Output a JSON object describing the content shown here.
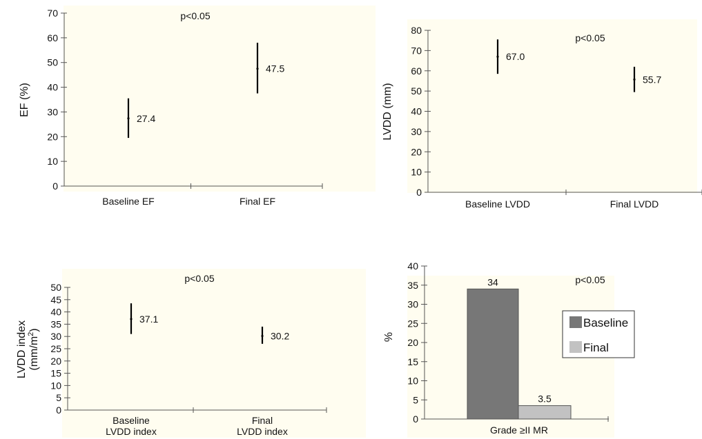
{
  "chart_data": [
    {
      "type": "errorbar",
      "categories": [
        "Baseline EF",
        "Final EF"
      ],
      "ylabel": "EF (%)",
      "ylim": [
        0,
        70
      ],
      "yticks": [
        0,
        10,
        20,
        30,
        40,
        50,
        60,
        70
      ],
      "annotation": "p<0.05",
      "points": [
        {
          "mean": 27.4,
          "low": 19.5,
          "high": 35.5,
          "label": "27.4"
        },
        {
          "mean": 47.5,
          "low": 37.5,
          "high": 58,
          "label": "47.5"
        }
      ]
    },
    {
      "type": "errorbar",
      "categories": [
        "Baseline LVDD",
        "Final LVDD"
      ],
      "ylabel": "LVDD (mm)",
      "ylim": [
        0,
        80
      ],
      "yticks": [
        0,
        10,
        20,
        30,
        40,
        50,
        60,
        70,
        80
      ],
      "annotation": "p<0.05",
      "points": [
        {
          "mean": 67.0,
          "low": 58.5,
          "high": 75.5,
          "label": "67.0"
        },
        {
          "mean": 55.7,
          "low": 49.5,
          "high": 62,
          "label": "55.7"
        }
      ]
    },
    {
      "type": "errorbar",
      "categories": [
        [
          "Baseline",
          "LVDD index"
        ],
        [
          "Final",
          "LVDD index"
        ]
      ],
      "ylabel": [
        "LVDD index",
        "(mm/m",
        "2",
        ")"
      ],
      "ylim": [
        0,
        50
      ],
      "yticks": [
        0,
        5,
        10,
        15,
        20,
        25,
        30,
        35,
        40,
        45,
        50
      ],
      "annotation": "p<0.05",
      "points": [
        {
          "mean": 37.1,
          "low": 31,
          "high": 43.5,
          "label": "37.1"
        },
        {
          "mean": 30.2,
          "low": 27,
          "high": 34,
          "label": "30.2"
        }
      ]
    },
    {
      "type": "bar",
      "categories": [
        "Grade ≥II MR"
      ],
      "ylabel": "%",
      "ylim": [
        0,
        40
      ],
      "yticks": [
        0,
        5,
        10,
        15,
        20,
        25,
        30,
        35,
        40
      ],
      "annotation": "p<0.05",
      "legend": "right",
      "series": [
        {
          "name": "Baseline",
          "values": [
            34
          ],
          "label": "34",
          "color": "#777777"
        },
        {
          "name": "Final",
          "values": [
            3.5
          ],
          "label": "3.5",
          "color": "#c2c2c2"
        }
      ]
    }
  ]
}
